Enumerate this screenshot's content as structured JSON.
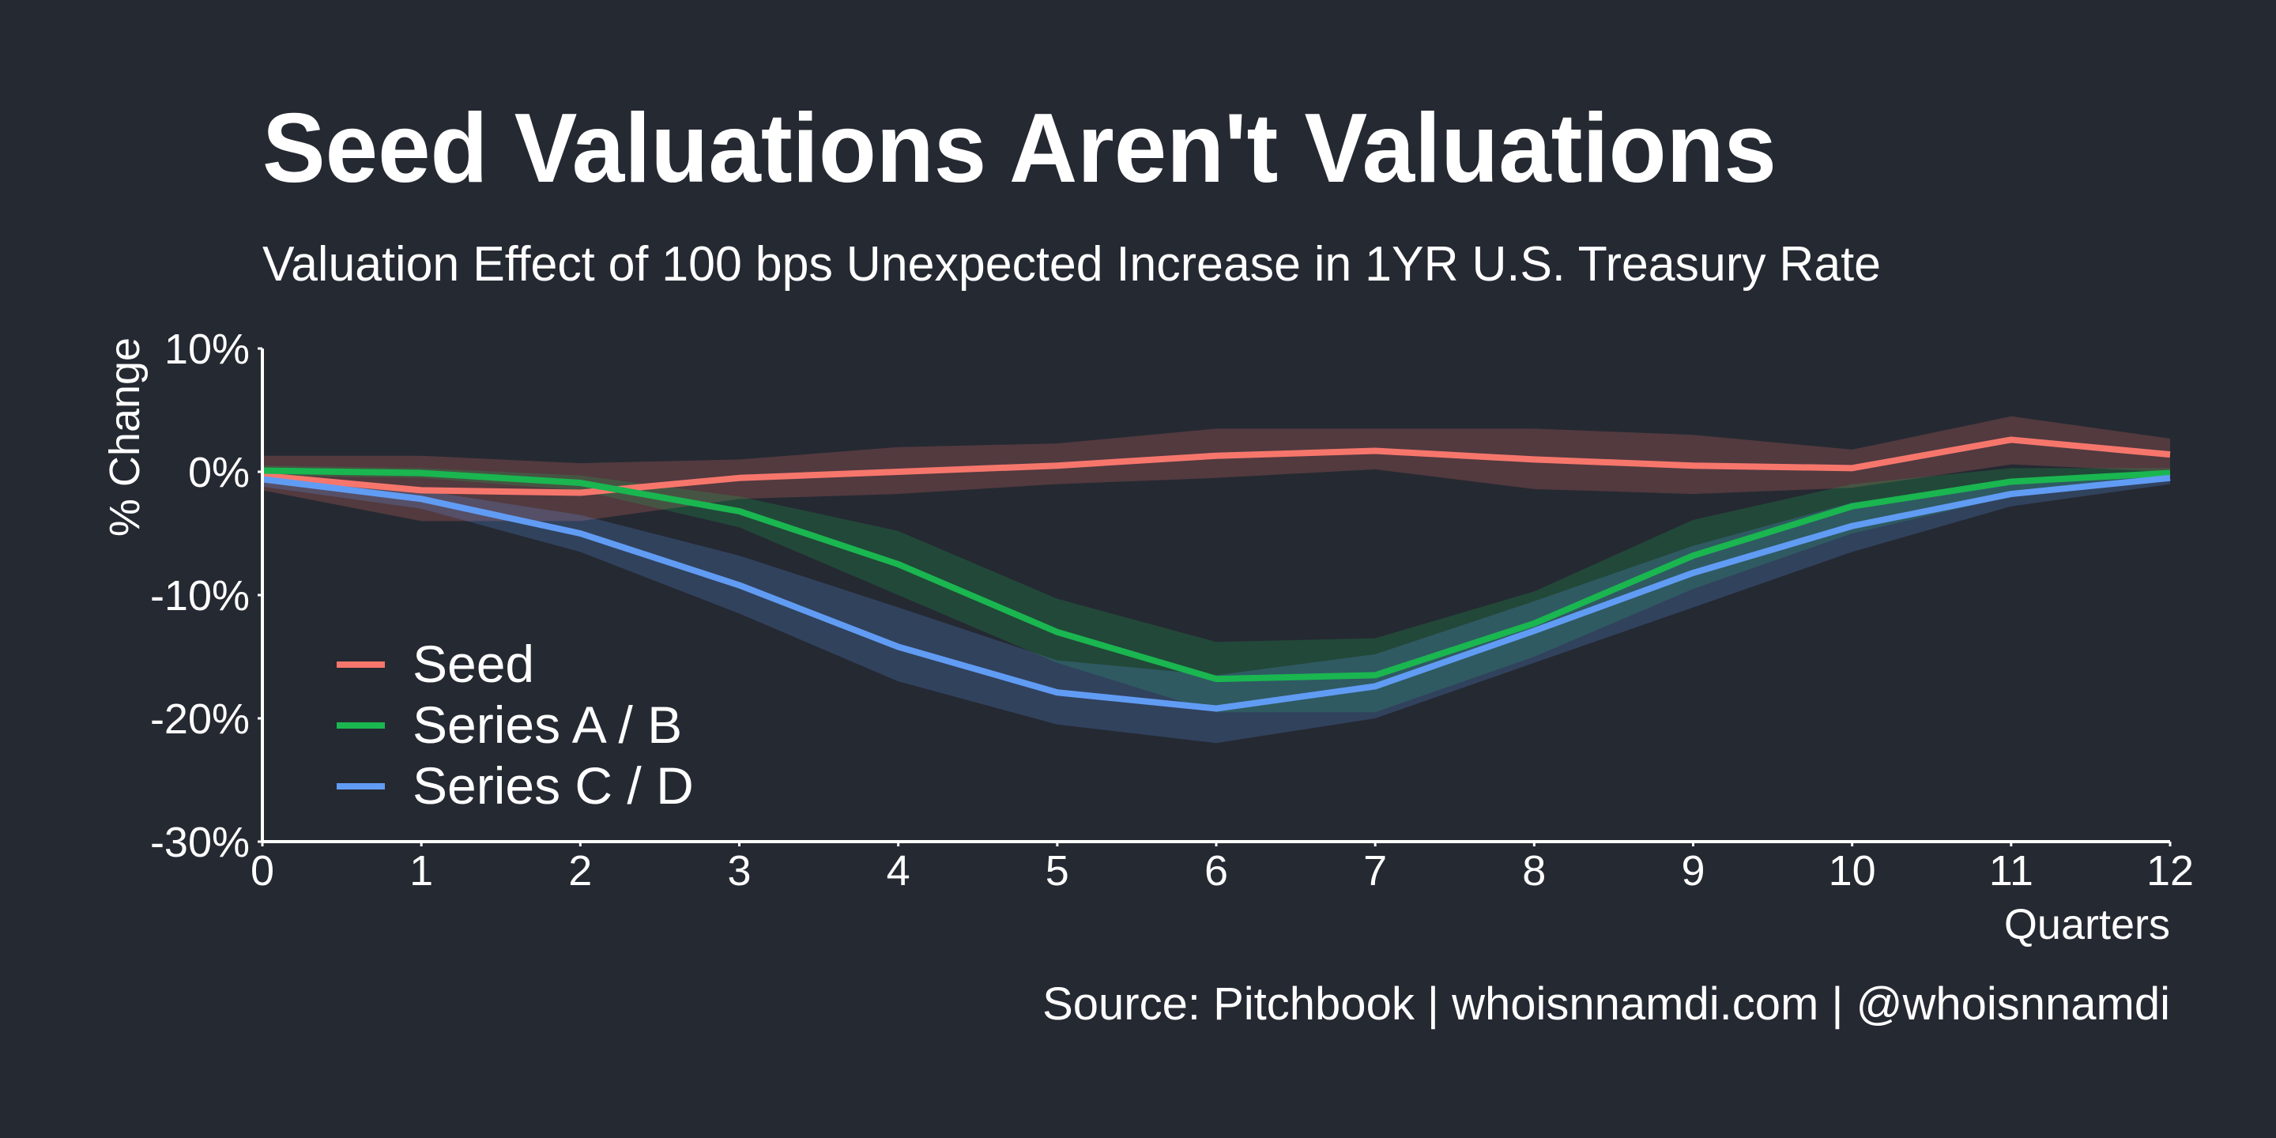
{
  "chart_data": {
    "type": "line",
    "title": "Seed Valuations Aren't Valuations",
    "subtitle": "Valuation Effect of 100 bps Unexpected Increase in 1YR U.S. Treasury Rate",
    "y_label": "% Change",
    "x_label": "Quarters",
    "source": "Source: Pitchbook | whoisnnamdi.com | @whoisnnamdi",
    "x": [
      0,
      1,
      2,
      3,
      4,
      5,
      6,
      7,
      8,
      9,
      10,
      11,
      12
    ],
    "xlim": [
      0,
      12
    ],
    "xticks": [
      0,
      1,
      2,
      3,
      4,
      5,
      6,
      7,
      8,
      9,
      10,
      11,
      12
    ],
    "ylim": [
      -30,
      10
    ],
    "yticks": [
      {
        "value": -30,
        "label": "-30%"
      },
      {
        "value": -20,
        "label": "-20%"
      },
      {
        "value": -10,
        "label": "-10%"
      },
      {
        "value": 0,
        "label": "0%"
      },
      {
        "value": 10,
        "label": "10%"
      }
    ],
    "legend": "lower left",
    "series": [
      {
        "name": "Seed",
        "color": "#f7766c",
        "values": [
          -0.3,
          -1.5,
          -1.7,
          -0.5,
          0,
          0.5,
          1.3,
          1.7,
          1.0,
          0.5,
          0.3,
          2.6,
          1.4
        ],
        "upper": [
          1.3,
          1.3,
          0.7,
          1.0,
          2.0,
          2.3,
          3.5,
          3.5,
          3.5,
          3.0,
          1.8,
          4.5,
          2.7
        ],
        "lower": [
          -1.5,
          -4.0,
          -4.0,
          -2.2,
          -1.8,
          -1.0,
          -0.5,
          0.2,
          -1.4,
          -1.8,
          -1.3,
          0.6,
          0
        ]
      },
      {
        "name": "Series A / B",
        "color": "#1ab650",
        "values": [
          0.1,
          -0.1,
          -0.9,
          -3.2,
          -7.5,
          -13.0,
          -16.8,
          -16.5,
          -12.3,
          -6.8,
          -2.8,
          -0.8,
          -0.1
        ],
        "upper": [
          0.5,
          0.3,
          -0.3,
          -2.0,
          -4.8,
          -10.3,
          -13.8,
          -13.5,
          -9.7,
          -3.9,
          -1.0,
          0.3,
          0.3
        ],
        "lower": [
          -0.3,
          -0.5,
          -1.5,
          -4.5,
          -10.0,
          -15.5,
          -19.5,
          -19.5,
          -15.0,
          -9.5,
          -5.0,
          -2.0,
          -0.5
        ]
      },
      {
        "name": "Series C / D",
        "color": "#619cf4",
        "values": [
          -0.6,
          -2.2,
          -5.0,
          -9.2,
          -14.2,
          -17.9,
          -19.2,
          -17.4,
          -12.9,
          -8.2,
          -4.4,
          -1.8,
          -0.5
        ],
        "upper": [
          -0.2,
          -1.5,
          -3.5,
          -6.8,
          -11.0,
          -15.3,
          -16.5,
          -14.8,
          -10.5,
          -6.0,
          -2.5,
          -0.8,
          0
        ],
        "lower": [
          -1.2,
          -3.0,
          -6.5,
          -11.5,
          -17.0,
          -20.5,
          -22.0,
          -20.0,
          -15.5,
          -11.0,
          -6.5,
          -2.8,
          -1.0
        ]
      }
    ]
  }
}
